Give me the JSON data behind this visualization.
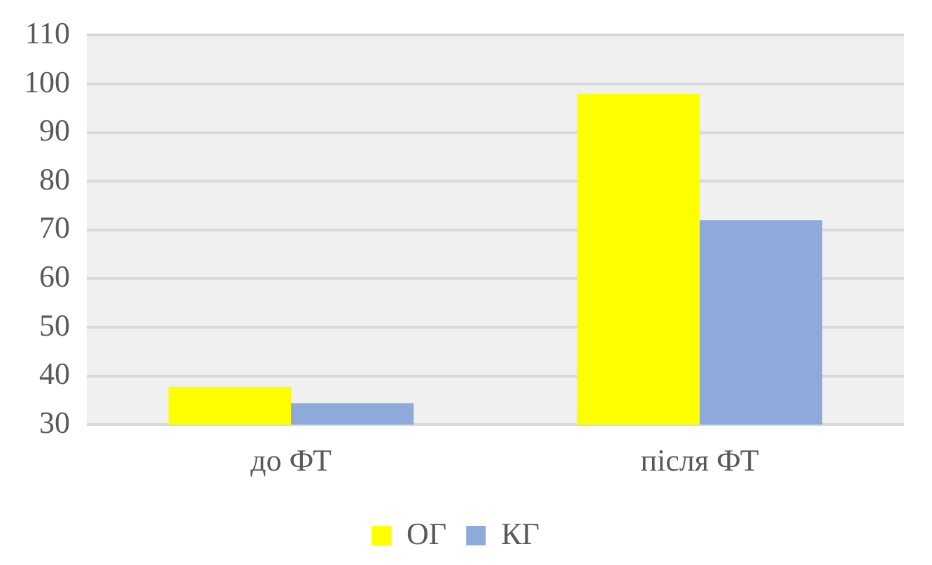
{
  "chart_data": {
    "type": "bar",
    "categories": [
      "до ФТ",
      "після ФТ"
    ],
    "series": [
      {
        "name": "ОГ",
        "color": "#ffff00",
        "values": [
          37.8,
          98
        ]
      },
      {
        "name": "КГ",
        "color": "#8eaadb",
        "values": [
          34.4,
          72
        ]
      }
    ],
    "ylim": [
      30,
      110
    ],
    "yticks": [
      30,
      40,
      50,
      60,
      70,
      80,
      90,
      100,
      110
    ],
    "grid": "y",
    "legend": "bottom"
  }
}
